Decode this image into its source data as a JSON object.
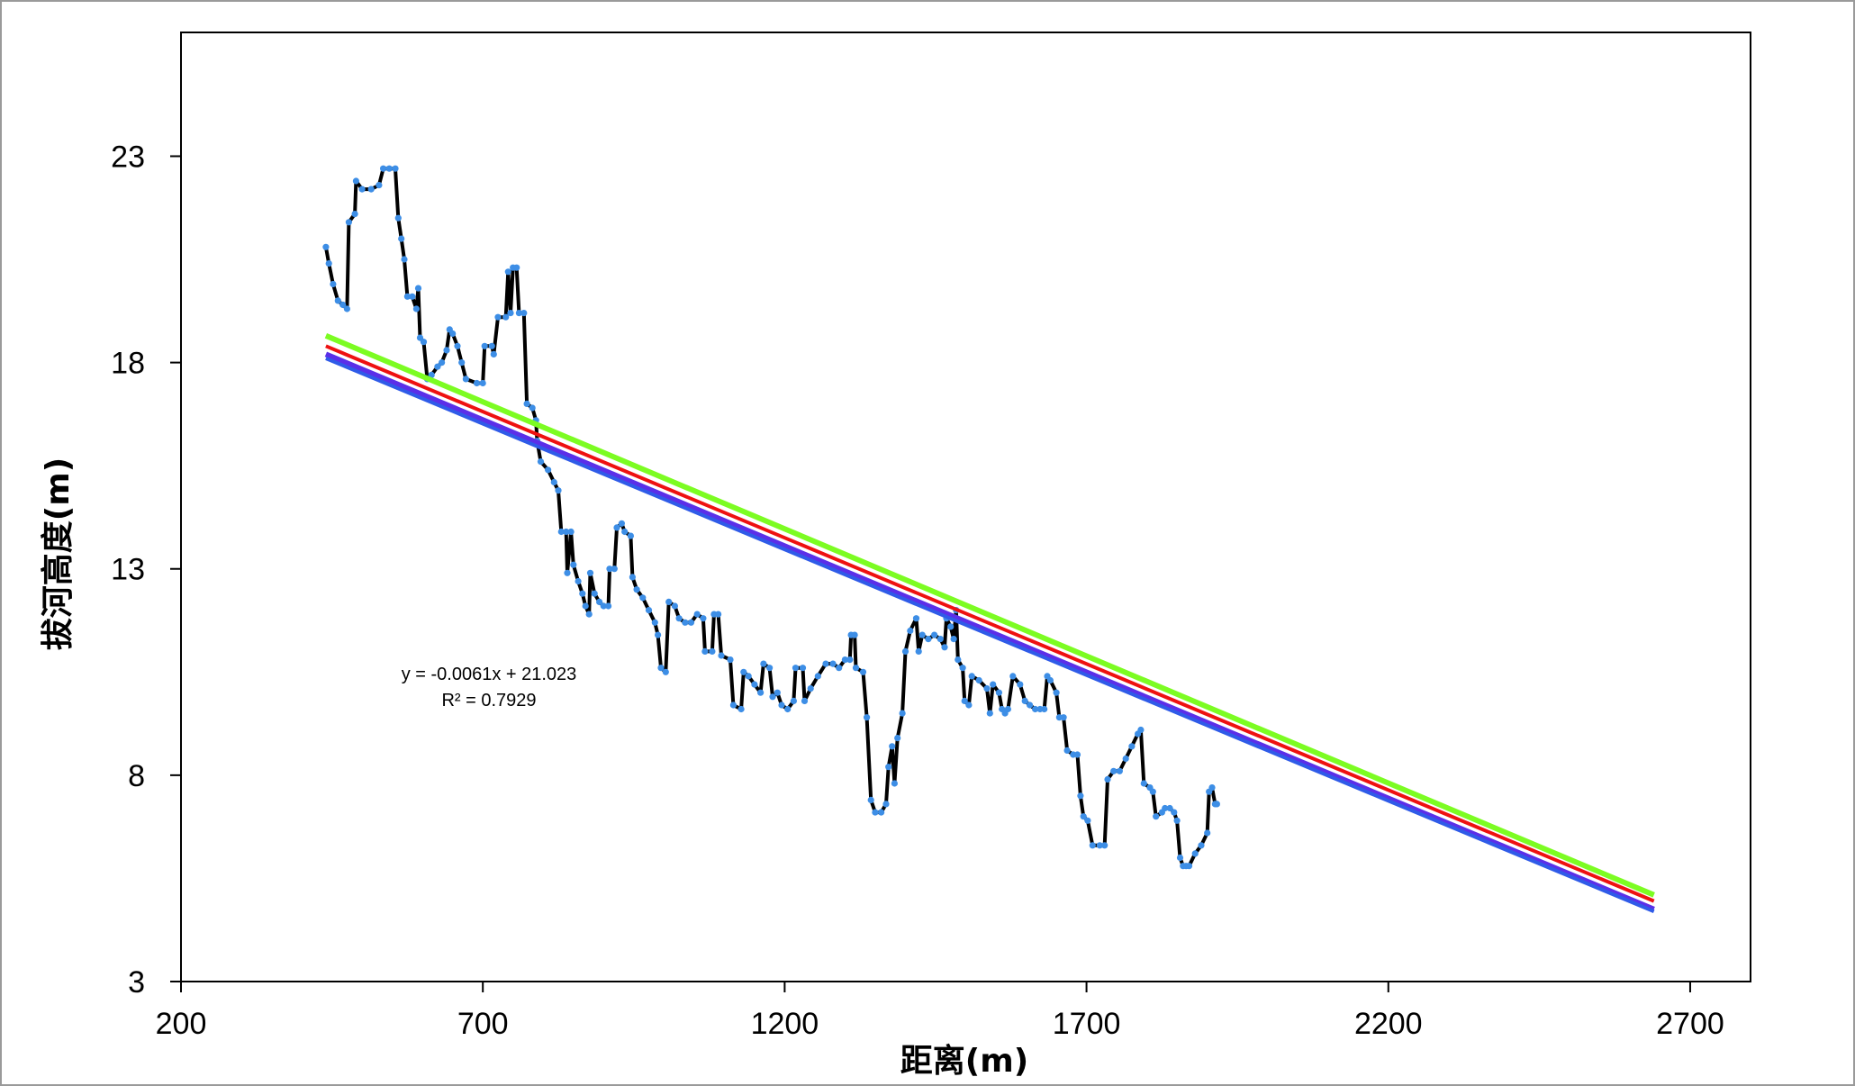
{
  "chart_data": {
    "type": "line",
    "xlabel": "距离(m)",
    "ylabel": "拔河高度(m)",
    "xlim": [
      200,
      2800
    ],
    "ylim": [
      3,
      26
    ],
    "xticks": [
      200,
      700,
      1200,
      1700,
      2200,
      2700
    ],
    "yticks": [
      3,
      8,
      13,
      18,
      23
    ],
    "grid": false,
    "legend": "none",
    "annotation": {
      "equation": "y = -0.0061x + 21.023",
      "r2": "R² = 0.7929"
    },
    "colors": {
      "profile_marker": "#3d8ee6",
      "profile_line": "#000000",
      "trend_green": "#7cfc22",
      "trend_red": "#ee1111",
      "trend_purple": "#5b2fe8",
      "trend_blue": "#2f5be8",
      "frame": "#000000"
    },
    "series": [
      {
        "type": "line",
        "points": [
          [
            440,
            20.8
          ],
          [
            445,
            20.4
          ],
          [
            452,
            19.9
          ],
          [
            460,
            19.5
          ],
          [
            468,
            19.4
          ],
          [
            475,
            19.3
          ],
          [
            478,
            21.4
          ],
          [
            488,
            21.6
          ],
          [
            490,
            22.4
          ],
          [
            500,
            22.2
          ],
          [
            515,
            22.2
          ],
          [
            528,
            22.3
          ],
          [
            535,
            22.7
          ],
          [
            545,
            22.7
          ],
          [
            555,
            22.7
          ],
          [
            560,
            21.5
          ],
          [
            565,
            21.0
          ],
          [
            570,
            20.5
          ],
          [
            575,
            19.6
          ],
          [
            583,
            19.6
          ],
          [
            590,
            19.3
          ],
          [
            593,
            19.8
          ],
          [
            596,
            18.6
          ],
          [
            602,
            18.5
          ],
          [
            608,
            17.6
          ],
          [
            615,
            17.7
          ],
          [
            625,
            17.9
          ],
          [
            632,
            18.0
          ],
          [
            640,
            18.3
          ],
          [
            645,
            18.8
          ],
          [
            650,
            18.7
          ],
          [
            658,
            18.4
          ],
          [
            665,
            18.0
          ],
          [
            672,
            17.6
          ],
          [
            690,
            17.5
          ],
          [
            700,
            17.5
          ],
          [
            703,
            18.4
          ],
          [
            715,
            18.4
          ],
          [
            718,
            18.2
          ],
          [
            725,
            19.1
          ],
          [
            738,
            19.1
          ],
          [
            742,
            20.2
          ],
          [
            746,
            19.2
          ],
          [
            750,
            20.3
          ],
          [
            756,
            20.3
          ],
          [
            760,
            19.2
          ],
          [
            768,
            19.2
          ],
          [
            773,
            17.0
          ],
          [
            782,
            16.9
          ],
          [
            788,
            16.6
          ],
          [
            790,
            16.1
          ],
          [
            796,
            15.6
          ],
          [
            808,
            15.4
          ],
          [
            818,
            15.1
          ],
          [
            825,
            14.9
          ],
          [
            830,
            13.9
          ],
          [
            838,
            13.9
          ],
          [
            840,
            12.9
          ],
          [
            846,
            13.9
          ],
          [
            850,
            13.1
          ],
          [
            858,
            12.7
          ],
          [
            865,
            12.4
          ],
          [
            870,
            12.1
          ],
          [
            876,
            11.9
          ],
          [
            878,
            12.9
          ],
          [
            885,
            12.4
          ],
          [
            893,
            12.2
          ],
          [
            900,
            12.1
          ],
          [
            908,
            12.1
          ],
          [
            910,
            13.0
          ],
          [
            918,
            13.0
          ],
          [
            922,
            14.0
          ],
          [
            930,
            14.1
          ],
          [
            935,
            13.9
          ],
          [
            945,
            13.8
          ],
          [
            948,
            12.8
          ],
          [
            955,
            12.5
          ],
          [
            965,
            12.3
          ],
          [
            975,
            12.0
          ],
          [
            985,
            11.7
          ],
          [
            990,
            11.4
          ],
          [
            995,
            10.6
          ],
          [
            1003,
            10.5
          ],
          [
            1008,
            12.2
          ],
          [
            1018,
            12.1
          ],
          [
            1025,
            11.8
          ],
          [
            1035,
            11.7
          ],
          [
            1045,
            11.7
          ],
          [
            1055,
            11.9
          ],
          [
            1065,
            11.8
          ],
          [
            1068,
            11.0
          ],
          [
            1080,
            11.0
          ],
          [
            1083,
            11.9
          ],
          [
            1090,
            11.9
          ],
          [
            1095,
            10.9
          ],
          [
            1110,
            10.8
          ],
          [
            1115,
            9.7
          ],
          [
            1128,
            9.6
          ],
          [
            1132,
            10.5
          ],
          [
            1140,
            10.4
          ],
          [
            1150,
            10.2
          ],
          [
            1160,
            10.0
          ],
          [
            1165,
            10.7
          ],
          [
            1175,
            10.6
          ],
          [
            1180,
            9.9
          ],
          [
            1188,
            10.0
          ],
          [
            1195,
            9.7
          ],
          [
            1205,
            9.6
          ],
          [
            1215,
            9.8
          ],
          [
            1218,
            10.6
          ],
          [
            1230,
            10.6
          ],
          [
            1233,
            9.8
          ],
          [
            1243,
            10.1
          ],
          [
            1255,
            10.4
          ],
          [
            1268,
            10.7
          ],
          [
            1280,
            10.7
          ],
          [
            1290,
            10.6
          ],
          [
            1300,
            10.8
          ],
          [
            1308,
            10.8
          ],
          [
            1310,
            11.4
          ],
          [
            1316,
            11.4
          ],
          [
            1318,
            10.6
          ],
          [
            1330,
            10.5
          ],
          [
            1336,
            9.4
          ],
          [
            1343,
            7.4
          ],
          [
            1350,
            7.1
          ],
          [
            1360,
            7.1
          ],
          [
            1368,
            7.3
          ],
          [
            1372,
            8.2
          ],
          [
            1378,
            8.7
          ],
          [
            1382,
            7.8
          ],
          [
            1387,
            8.9
          ],
          [
            1395,
            9.5
          ],
          [
            1400,
            11.0
          ],
          [
            1408,
            11.5
          ],
          [
            1418,
            11.8
          ],
          [
            1422,
            11.0
          ],
          [
            1428,
            11.4
          ],
          [
            1438,
            11.3
          ],
          [
            1448,
            11.4
          ],
          [
            1458,
            11.3
          ],
          [
            1465,
            11.1
          ],
          [
            1468,
            11.8
          ],
          [
            1475,
            11.6
          ],
          [
            1480,
            11.3
          ],
          [
            1484,
            12.0
          ],
          [
            1487,
            10.8
          ],
          [
            1495,
            10.6
          ],
          [
            1498,
            9.8
          ],
          [
            1505,
            9.7
          ],
          [
            1510,
            10.4
          ],
          [
            1522,
            10.3
          ],
          [
            1535,
            10.1
          ],
          [
            1540,
            9.5
          ],
          [
            1545,
            10.2
          ],
          [
            1555,
            10.0
          ],
          [
            1560,
            9.6
          ],
          [
            1565,
            9.5
          ],
          [
            1570,
            9.6
          ],
          [
            1578,
            10.4
          ],
          [
            1590,
            10.2
          ],
          [
            1598,
            9.8
          ],
          [
            1606,
            9.7
          ],
          [
            1615,
            9.6
          ],
          [
            1623,
            9.6
          ],
          [
            1630,
            9.6
          ],
          [
            1635,
            10.4
          ],
          [
            1640,
            10.3
          ],
          [
            1650,
            10.0
          ],
          [
            1655,
            9.4
          ],
          [
            1662,
            9.4
          ],
          [
            1668,
            8.6
          ],
          [
            1678,
            8.5
          ],
          [
            1685,
            8.5
          ],
          [
            1690,
            7.5
          ],
          [
            1695,
            7.0
          ],
          [
            1702,
            6.9
          ],
          [
            1710,
            6.3
          ],
          [
            1722,
            6.3
          ],
          [
            1730,
            6.3
          ],
          [
            1735,
            7.9
          ],
          [
            1745,
            8.1
          ],
          [
            1755,
            8.1
          ],
          [
            1765,
            8.4
          ],
          [
            1775,
            8.7
          ],
          [
            1785,
            9.0
          ],
          [
            1790,
            9.1
          ],
          [
            1795,
            7.8
          ],
          [
            1805,
            7.7
          ],
          [
            1810,
            7.6
          ],
          [
            1815,
            7.0
          ],
          [
            1825,
            7.1
          ],
          [
            1830,
            7.2
          ],
          [
            1838,
            7.2
          ],
          [
            1845,
            7.1
          ],
          [
            1850,
            6.9
          ],
          [
            1855,
            6.0
          ],
          [
            1860,
            5.8
          ],
          [
            1865,
            5.8
          ],
          [
            1870,
            5.8
          ],
          [
            1880,
            6.1
          ],
          [
            1890,
            6.3
          ],
          [
            1900,
            6.6
          ],
          [
            1903,
            7.6
          ],
          [
            1908,
            7.7
          ],
          [
            1913,
            7.3
          ],
          [
            1916,
            7.3
          ]
        ]
      }
    ],
    "trend_lines": [
      {
        "name": "green",
        "x": [
          440,
          2640
        ],
        "y": [
          18.65,
          5.1
        ]
      },
      {
        "name": "red",
        "x": [
          440,
          2640
        ],
        "y": [
          18.4,
          4.95
        ]
      },
      {
        "name": "purple",
        "x": [
          440,
          2640
        ],
        "y": [
          18.2,
          4.75
        ]
      },
      {
        "name": "blue",
        "x": [
          440,
          2640
        ],
        "y": [
          18.1,
          4.7
        ]
      }
    ]
  }
}
